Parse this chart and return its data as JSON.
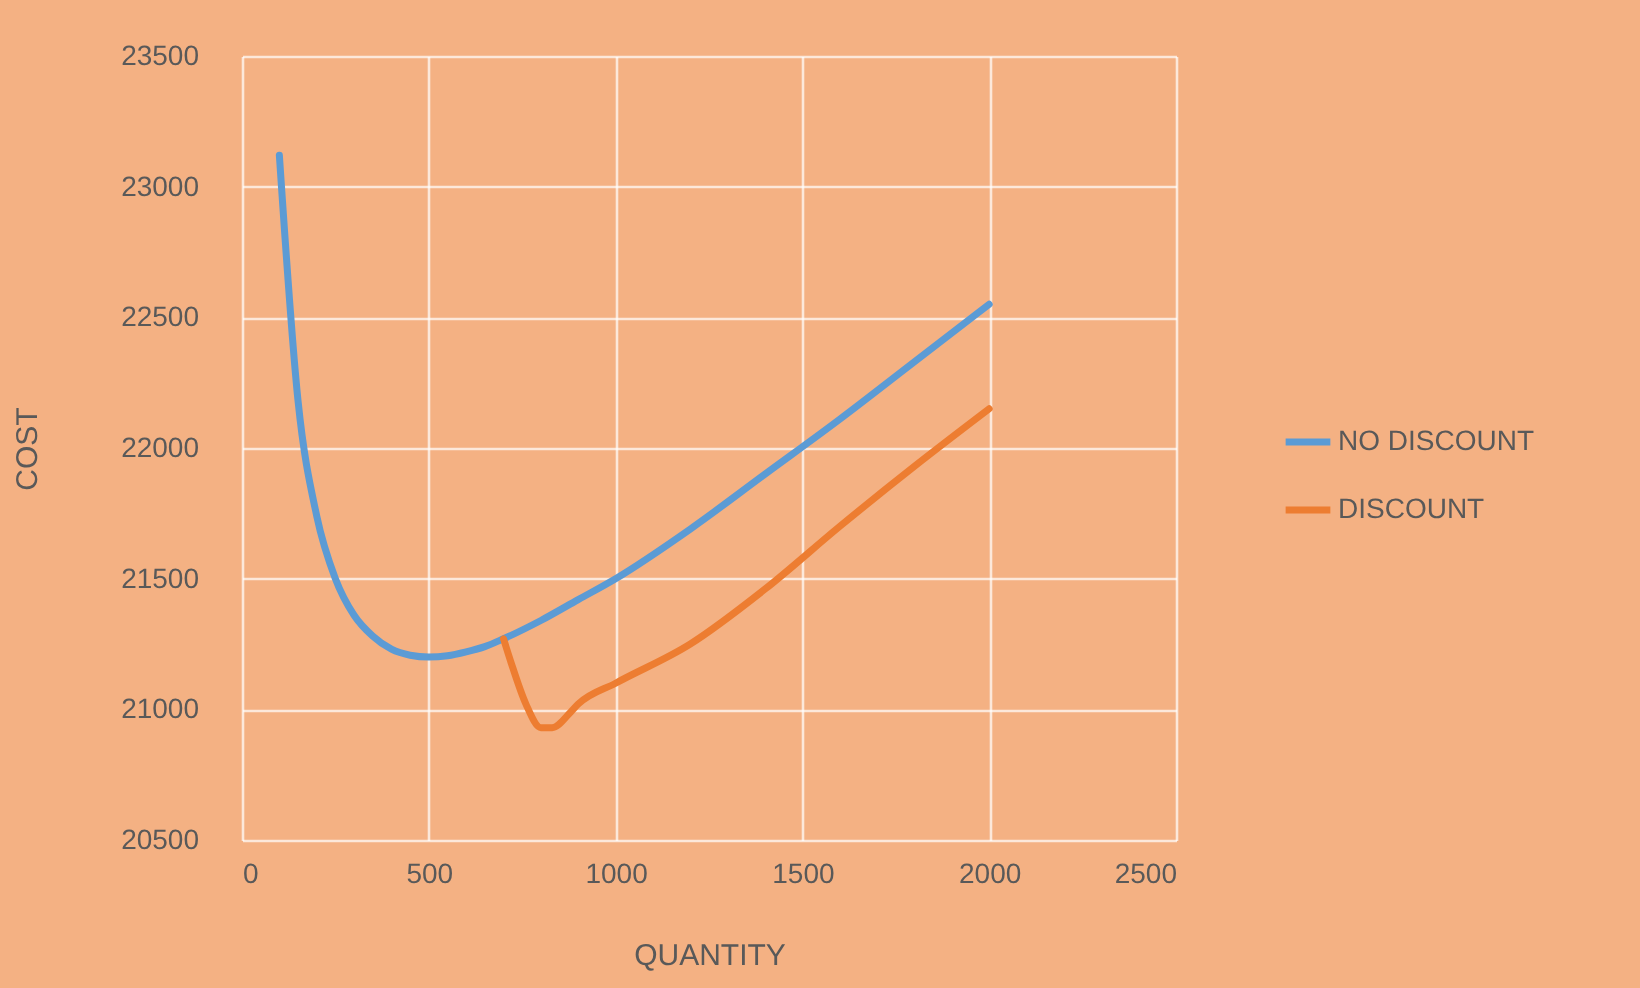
{
  "chart_data": {
    "type": "line",
    "xlabel": "QUANTITY",
    "ylabel": "COST",
    "x": [
      100,
      150,
      200,
      250,
      300,
      350,
      400,
      450,
      500,
      550,
      600,
      650,
      700,
      800,
      900,
      1000,
      1200,
      1400,
      1600,
      1800,
      2000
    ],
    "series": [
      {
        "name": "NO DISCOUNT",
        "color": "#5b9bd5",
        "values": [
          23120,
          22180,
          21740,
          21500,
          21360,
          21280,
          21230,
          21207,
          21200,
          21205,
          21220,
          21240,
          21270,
          21340,
          21420,
          21500,
          21690,
          21900,
          22110,
          22330,
          22550
        ]
      },
      {
        "name": "DISCOUNT",
        "color": "#ed7d31",
        "x": [
          700,
          720,
          760,
          800,
          830,
          880,
          900,
          1000,
          1200,
          1400,
          1600,
          1800,
          2000
        ],
        "values": [
          21270,
          21180,
          21020,
          20930,
          20930,
          20990,
          21020,
          21100,
          21250,
          21460,
          21700,
          21930,
          22150
        ]
      }
    ],
    "xlim": [
      0,
      2500
    ],
    "xticks": [
      0,
      500,
      1000,
      1500,
      2000,
      2500
    ],
    "ylim": [
      20500,
      23500
    ],
    "yticks": [
      20500,
      21000,
      21500,
      22000,
      22500,
      23000,
      23500
    ],
    "grid": true,
    "legend": "right",
    "marker": "none",
    "line_style": "solid"
  }
}
